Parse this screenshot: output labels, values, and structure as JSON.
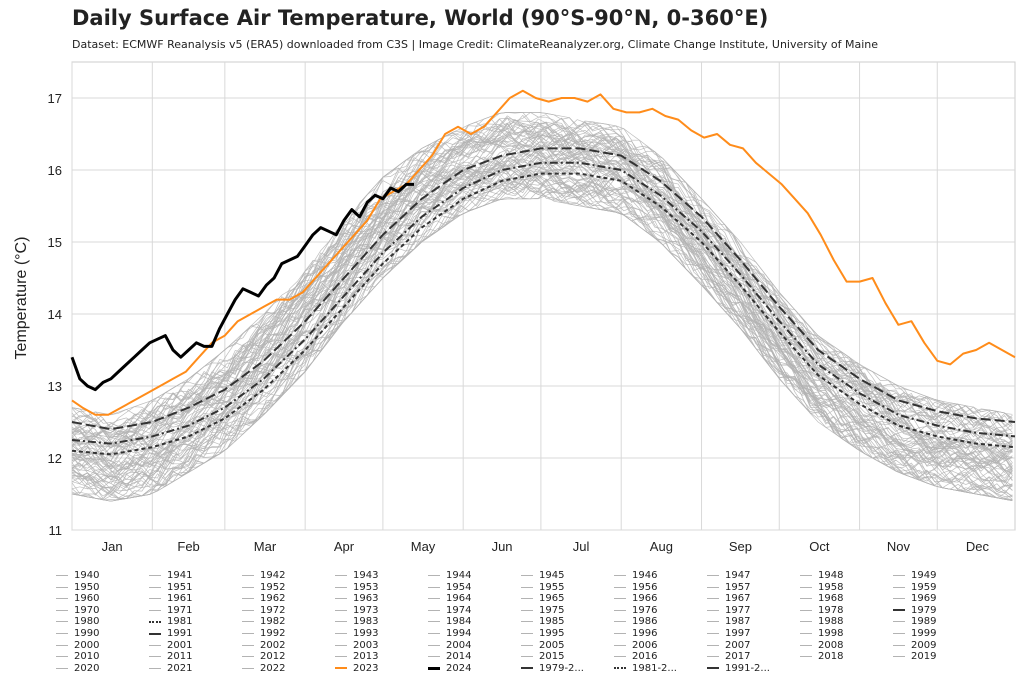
{
  "header": {
    "title": "Daily Surface Air Temperature, World (90°S-90°N, 0-360°E)",
    "subtitle": "Dataset: ECMWF Reanalysis v5 (ERA5) downloaded from C3S | Image Credit: ClimateReanalyzer.org, Climate Change Institute, University of Maine"
  },
  "colors": {
    "historical": "#b3b3b3",
    "y2023": "#ff8c1a",
    "y2024": "#000000",
    "mean": "#333333",
    "grid": "#d9d9d9"
  },
  "chart_data": {
    "type": "line",
    "title": "Daily Surface Air Temperature, World (90°S-90°N, 0-360°E)",
    "ylabel": "Temperature (°C)",
    "xlabel": "",
    "ylim": [
      11,
      17.5
    ],
    "xlim": [
      1,
      365
    ],
    "grid": true,
    "yticks": [
      11,
      12,
      13,
      14,
      15,
      16,
      17
    ],
    "month_labels": [
      "Jan",
      "Feb",
      "Mar",
      "Apr",
      "May",
      "Jun",
      "Jul",
      "Aug",
      "Sep",
      "Oct",
      "Nov",
      "Dec"
    ],
    "month_starts": [
      1,
      32,
      60,
      91,
      121,
      152,
      182,
      213,
      244,
      274,
      305,
      335
    ],
    "historical_envelope": {
      "x": [
        1,
        16,
        32,
        46,
        60,
        75,
        91,
        106,
        121,
        136,
        152,
        167,
        182,
        197,
        213,
        228,
        244,
        259,
        274,
        289,
        305,
        320,
        335,
        350,
        365
      ],
      "low": [
        11.5,
        11.4,
        11.5,
        11.8,
        12.1,
        12.6,
        13.2,
        13.9,
        14.5,
        15.0,
        15.4,
        15.6,
        15.6,
        15.5,
        15.4,
        15.0,
        14.4,
        13.8,
        13.1,
        12.5,
        12.1,
        11.8,
        11.6,
        11.5,
        11.4
      ],
      "high": [
        12.7,
        12.6,
        12.8,
        13.1,
        13.5,
        14.0,
        14.6,
        15.3,
        15.9,
        16.3,
        16.6,
        16.8,
        16.8,
        16.7,
        16.6,
        16.2,
        15.6,
        15.0,
        14.3,
        13.7,
        13.3,
        13.0,
        12.8,
        12.7,
        12.6
      ]
    },
    "series": [
      {
        "name": "2023",
        "x": [
          1,
          5,
          10,
          15,
          20,
          25,
          30,
          35,
          40,
          45,
          50,
          55,
          60,
          65,
          70,
          75,
          80,
          85,
          90,
          95,
          100,
          105,
          110,
          115,
          120,
          125,
          130,
          135,
          140,
          145,
          150,
          155,
          160,
          165,
          170,
          175,
          180,
          185,
          190,
          195,
          200,
          205,
          210,
          215,
          220,
          225,
          230,
          235,
          240,
          245,
          250,
          255,
          260,
          265,
          270,
          275,
          280,
          285,
          290,
          295,
          300,
          305,
          310,
          315,
          320,
          325,
          330,
          335,
          340,
          345,
          350,
          355,
          360,
          365
        ],
        "values": [
          12.8,
          12.7,
          12.6,
          12.6,
          12.7,
          12.8,
          12.9,
          13.0,
          13.1,
          13.2,
          13.4,
          13.6,
          13.7,
          13.9,
          14.0,
          14.1,
          14.2,
          14.2,
          14.3,
          14.5,
          14.7,
          14.9,
          15.1,
          15.3,
          15.6,
          15.7,
          15.8,
          16.0,
          16.2,
          16.5,
          16.6,
          16.5,
          16.6,
          16.8,
          17.0,
          17.1,
          17.0,
          16.95,
          17.0,
          17.0,
          16.95,
          17.05,
          16.85,
          16.8,
          16.8,
          16.85,
          16.75,
          16.7,
          16.55,
          16.45,
          16.5,
          16.35,
          16.3,
          16.1,
          15.95,
          15.8,
          15.6,
          15.4,
          15.1,
          14.75,
          14.45,
          14.45,
          14.5,
          14.15,
          13.85,
          13.9,
          13.6,
          13.35,
          13.3,
          13.45,
          13.5,
          13.6,
          13.5,
          13.4
        ]
      },
      {
        "name": "2024",
        "x": [
          1,
          4,
          7,
          10,
          13,
          16,
          19,
          22,
          25,
          28,
          31,
          34,
          37,
          40,
          43,
          46,
          49,
          52,
          55,
          58,
          61,
          64,
          67,
          70,
          73,
          76,
          79,
          82,
          85,
          88,
          91,
          94,
          97,
          100,
          103,
          106,
          109,
          112,
          115,
          118,
          121,
          124,
          127,
          130,
          133
        ],
        "values": [
          13.4,
          13.1,
          13.0,
          12.95,
          13.05,
          13.1,
          13.2,
          13.3,
          13.4,
          13.5,
          13.6,
          13.65,
          13.7,
          13.5,
          13.4,
          13.5,
          13.6,
          13.55,
          13.55,
          13.8,
          14.0,
          14.2,
          14.35,
          14.3,
          14.25,
          14.4,
          14.5,
          14.7,
          14.75,
          14.8,
          14.95,
          15.1,
          15.2,
          15.15,
          15.1,
          15.3,
          15.45,
          15.35,
          15.55,
          15.65,
          15.6,
          15.75,
          15.7,
          15.8,
          15.8
        ]
      },
      {
        "name": "1979-2000",
        "x": [
          1,
          16,
          32,
          46,
          60,
          75,
          91,
          106,
          121,
          136,
          152,
          167,
          182,
          197,
          213,
          228,
          244,
          259,
          274,
          289,
          305,
          320,
          335,
          350,
          365
        ],
        "values": [
          12.1,
          12.05,
          12.15,
          12.3,
          12.55,
          12.95,
          13.5,
          14.1,
          14.7,
          15.2,
          15.6,
          15.85,
          15.95,
          15.95,
          15.85,
          15.5,
          15.0,
          14.4,
          13.75,
          13.15,
          12.75,
          12.45,
          12.3,
          12.2,
          12.15
        ]
      },
      {
        "name": "1981-2010",
        "x": [
          1,
          16,
          32,
          46,
          60,
          75,
          91,
          106,
          121,
          136,
          152,
          167,
          182,
          197,
          213,
          228,
          244,
          259,
          274,
          289,
          305,
          320,
          335,
          350,
          365
        ],
        "values": [
          12.25,
          12.2,
          12.3,
          12.45,
          12.7,
          13.1,
          13.65,
          14.25,
          14.85,
          15.35,
          15.75,
          16.0,
          16.1,
          16.1,
          16.0,
          15.65,
          15.15,
          14.55,
          13.9,
          13.3,
          12.9,
          12.6,
          12.45,
          12.35,
          12.3
        ]
      },
      {
        "name": "1991-2020",
        "x": [
          1,
          16,
          32,
          46,
          60,
          75,
          91,
          106,
          121,
          136,
          152,
          167,
          182,
          197,
          213,
          228,
          244,
          259,
          274,
          289,
          305,
          320,
          335,
          350,
          365
        ],
        "values": [
          12.5,
          12.4,
          12.5,
          12.7,
          12.95,
          13.35,
          13.9,
          14.5,
          15.1,
          15.6,
          16.0,
          16.2,
          16.3,
          16.3,
          16.2,
          15.85,
          15.35,
          14.75,
          14.1,
          13.5,
          13.1,
          12.8,
          12.65,
          12.55,
          12.5
        ]
      }
    ],
    "legend": [
      "1940",
      "1941",
      "1942",
      "1943",
      "1944",
      "1945",
      "1946",
      "1947",
      "1948",
      "1949",
      "1950",
      "1951",
      "1952",
      "1953",
      "1954",
      "1955",
      "1956",
      "1957",
      "1958",
      "1959",
      "1960",
      "1961",
      "1962",
      "1963",
      "1964",
      "1965",
      "1966",
      "1967",
      "1968",
      "1969",
      "1970",
      "1971",
      "1972",
      "1973",
      "1974",
      "1975",
      "1976",
      "1977",
      "1978",
      "1979",
      "1980",
      "1981",
      "1982",
      "1983",
      "1984",
      "1985",
      "1986",
      "1987",
      "1988",
      "1989",
      "1990",
      "1991",
      "1992",
      "1993",
      "1994",
      "1995",
      "1996",
      "1997",
      "1998",
      "1999",
      "2000",
      "2001",
      "2002",
      "2003",
      "2004",
      "2005",
      "2006",
      "2007",
      "2008",
      "2009",
      "2010",
      "2011",
      "2012",
      "2013",
      "2014",
      "2015",
      "2016",
      "2017",
      "2018",
      "2019",
      "2020",
      "2021",
      "2022",
      "2023",
      "2024",
      "1979-2...",
      "1981-2...",
      "1991-2..."
    ]
  }
}
